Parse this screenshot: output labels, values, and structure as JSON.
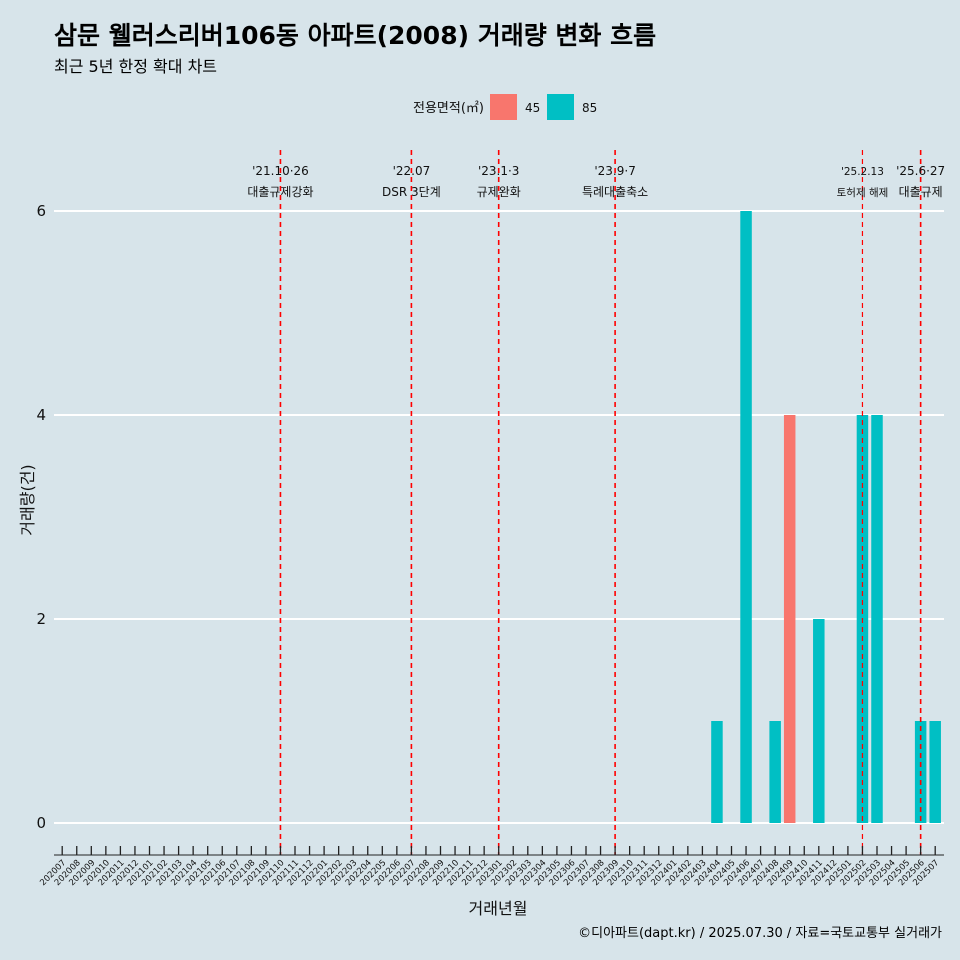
{
  "header": {
    "title": "삼문 웰러스리버106동 아파트(2008) 거래량 변화 흐름",
    "subtitle": "최근 5년 한정 확대 차트"
  },
  "footer": {
    "caption": "©디아파트(dapt.kr) / 2025.07.30 / 자료=국토교통부 실거래가"
  },
  "colors": {
    "series_45": "#f8766d",
    "series_85": "#00bfc4",
    "event_line": "#ff0000",
    "background": "#d7e4ea",
    "grid": "#ffffff"
  },
  "chart_data": {
    "type": "bar",
    "xlabel": "거래년월",
    "ylabel": "거래량(건)",
    "ylim": [
      0,
      6
    ],
    "yticks": [
      "0",
      "2",
      "4",
      "6"
    ],
    "legend": {
      "title": "전용면적(㎡)",
      "placement": "top",
      "entries": [
        "45",
        "85"
      ]
    },
    "categories": [
      "202007",
      "202008",
      "202009",
      "202010",
      "202011",
      "202012",
      "202101",
      "202102",
      "202103",
      "202104",
      "202105",
      "202106",
      "202107",
      "202108",
      "202109",
      "202110",
      "202111",
      "202112",
      "202201",
      "202202",
      "202203",
      "202204",
      "202205",
      "202206",
      "202207",
      "202208",
      "202209",
      "202210",
      "202211",
      "202212",
      "202301",
      "202302",
      "202303",
      "202304",
      "202305",
      "202306",
      "202307",
      "202308",
      "202309",
      "202310",
      "202311",
      "202312",
      "202401",
      "202402",
      "202403",
      "202404",
      "202405",
      "202406",
      "202407",
      "202408",
      "202409",
      "202410",
      "202411",
      "202412",
      "202501",
      "202502",
      "202503",
      "202504",
      "202505",
      "202506",
      "202507"
    ],
    "series": [
      {
        "name": "45",
        "values": [
          0,
          0,
          0,
          0,
          0,
          0,
          0,
          0,
          0,
          0,
          0,
          0,
          0,
          0,
          0,
          0,
          0,
          0,
          0,
          0,
          0,
          0,
          0,
          0,
          0,
          0,
          0,
          0,
          0,
          0,
          0,
          0,
          0,
          0,
          0,
          0,
          0,
          0,
          0,
          0,
          0,
          0,
          0,
          0,
          0,
          0,
          0,
          0,
          0,
          0,
          4,
          0,
          0,
          0,
          0,
          0,
          0,
          0,
          0,
          0,
          0
        ]
      },
      {
        "name": "85",
        "values": [
          0,
          0,
          0,
          0,
          0,
          0,
          0,
          0,
          0,
          0,
          0,
          0,
          0,
          0,
          0,
          0,
          0,
          0,
          0,
          0,
          0,
          0,
          0,
          0,
          0,
          0,
          0,
          0,
          0,
          0,
          0,
          0,
          0,
          0,
          0,
          0,
          0,
          0,
          0,
          0,
          0,
          0,
          0,
          0,
          0,
          1,
          0,
          6,
          0,
          1,
          0,
          0,
          2,
          0,
          0,
          4,
          4,
          0,
          0,
          1,
          1
        ]
      }
    ],
    "events": [
      {
        "date": "'21.10·26",
        "label": "대출규제강화",
        "category_pos": 15.0
      },
      {
        "date": "'22.07",
        "label": "DSR 3단계",
        "category_pos": 24.0
      },
      {
        "date": "'23.1·3",
        "label": "규제완화",
        "category_pos": 30.0
      },
      {
        "date": "'23.9·7",
        "label": "특례대출축소",
        "category_pos": 38.0
      },
      {
        "date": "'25.2.13",
        "label": "토허제 해제",
        "category_pos": 55.0,
        "small": true
      },
      {
        "date": "'25.6·27",
        "label": "대출규제",
        "category_pos": 59.0
      }
    ]
  }
}
